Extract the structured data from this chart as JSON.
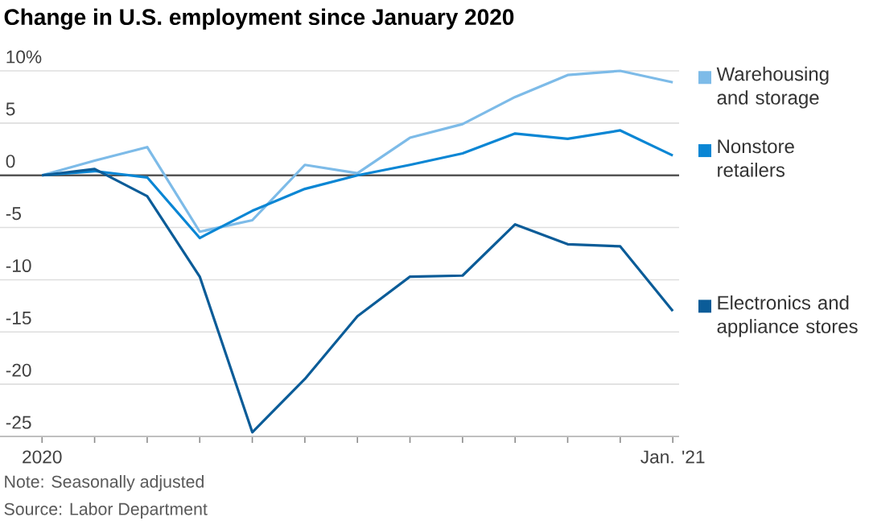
{
  "chart_data": {
    "type": "line",
    "title": "Change in U.S. employment since January 2020",
    "categories": [
      "2020",
      null,
      null,
      null,
      null,
      null,
      null,
      null,
      null,
      null,
      null,
      null,
      "Jan. '21"
    ],
    "series": [
      {
        "name": "Warehousing and storage",
        "color": "#7dbbe8",
        "values": [
          0,
          1.4,
          2.7,
          -5.4,
          -4.3,
          1.0,
          0.2,
          3.6,
          4.9,
          7.5,
          9.6,
          10,
          8.9
        ]
      },
      {
        "name": "Nonstore retailers",
        "color": "#0a86d4",
        "values": [
          0,
          0.4,
          -0.2,
          -6.0,
          -3.4,
          -1.3,
          0,
          1.0,
          2.1,
          4.0,
          3.5,
          4.3,
          1.9
        ]
      },
      {
        "name": "Electronics and appliance stores",
        "color": "#0b5c98",
        "values": [
          0,
          0.6,
          -2.0,
          -9.7,
          -24.6,
          -19.5,
          -13.5,
          -9.7,
          -9.6,
          -4.7,
          -6.6,
          -6.8,
          -13.0
        ]
      }
    ],
    "ylim": [
      -25,
      10
    ],
    "yticks": [
      {
        "value": 10,
        "label": "10%"
      },
      5,
      0,
      -5,
      -10,
      -15,
      -20,
      -25
    ],
    "grid": "y",
    "legend": "right",
    "marker": "none",
    "line_style": "solid",
    "ref_lines": [
      {
        "axis": "y",
        "value": 0,
        "color": "#555555"
      }
    ],
    "annotations": [
      "Note: Seasonally adjusted",
      "Source: Labor Department"
    ]
  }
}
